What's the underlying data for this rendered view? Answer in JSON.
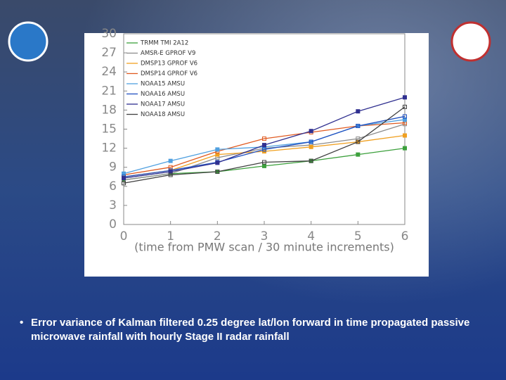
{
  "chart_data": {
    "type": "line",
    "x": [
      0,
      1,
      2,
      3,
      4,
      5,
      6
    ],
    "xlabel": "(time from PMW scan / 30 minute increments)",
    "xlim": [
      0,
      6
    ],
    "xticks": [
      0,
      1,
      2,
      3,
      4,
      5,
      6
    ],
    "ylim": [
      0,
      30
    ],
    "yticks": [
      0,
      3,
      6,
      9,
      12,
      15,
      18,
      21,
      24,
      27,
      30
    ],
    "legend": "upper left",
    "series": [
      {
        "name": "TRMM TMI 2A12",
        "color": "#3ca03c",
        "values": [
          7,
          8,
          8.3,
          9.2,
          10,
          11,
          12
        ]
      },
      {
        "name": "AMSR-E GPROF V9",
        "color": "#8c8c8c",
        "values": [
          7,
          8,
          10.5,
          12,
          12.5,
          13.5,
          15.8
        ]
      },
      {
        "name": "DMSP13 GPROF V6",
        "color": "#f0a020",
        "values": [
          7.5,
          8.5,
          11,
          11.5,
          12.2,
          13,
          14
        ]
      },
      {
        "name": "DMSP14 GPROF V6",
        "color": "#e05a20",
        "values": [
          7.8,
          9,
          11.5,
          13.5,
          14.5,
          15.5,
          16
        ]
      },
      {
        "name": "NOAA15 AMSU",
        "color": "#50a0e0",
        "values": [
          8,
          10,
          11.8,
          12.2,
          13,
          15.5,
          16.5
        ]
      },
      {
        "name": "NOAA16 AMSU",
        "color": "#2050c0",
        "values": [
          7.5,
          8.5,
          9.8,
          11.8,
          13,
          15.5,
          17
        ]
      },
      {
        "name": "NOAA17 AMSU",
        "color": "#303090",
        "values": [
          7.3,
          8.3,
          9.7,
          12.5,
          14.7,
          17.8,
          20
        ]
      },
      {
        "name": "NOAA18 AMSU",
        "color": "#404040",
        "values": [
          6.5,
          7.8,
          8.3,
          9.8,
          10,
          13,
          18.5
        ]
      }
    ]
  },
  "slide": {
    "bullet": "Error variance of Kalman filtered 0.25 degree lat/lon forward in time propagated passive microwave rainfall with hourly Stage II radar rainfall"
  }
}
